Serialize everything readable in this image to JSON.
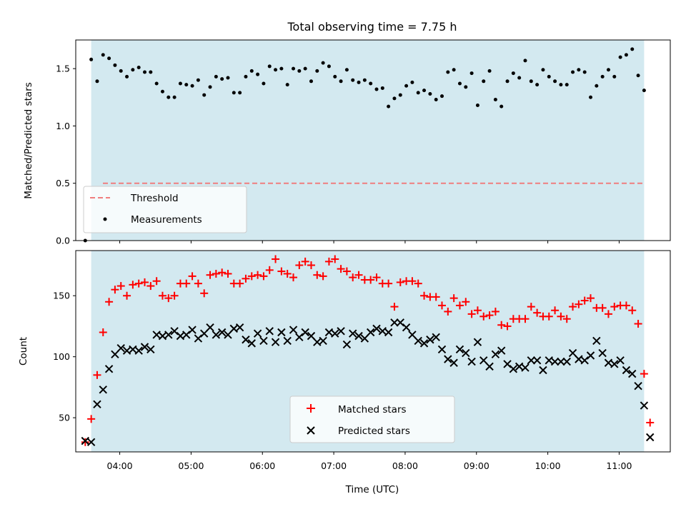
{
  "figure": {
    "title": "Total observing time = 7.75 h",
    "colors": {
      "shade": "#d3e9f0",
      "threshold": "#f07e7e",
      "measurement": "#000000",
      "matched": "#ff0000",
      "predicted": "#000000"
    }
  },
  "chart_data": [
    {
      "type": "scatter",
      "panel": "top",
      "ylabel": "Matched/Predicted stars",
      "xlabel": "",
      "xlim": [
        "03:23",
        "11:43"
      ],
      "ylim": [
        0,
        1.75
      ],
      "yticks": [
        "0.0",
        "0.5",
        "1.0",
        "1.5"
      ],
      "shaded_span": [
        "03:36",
        "11:21"
      ],
      "threshold": 0.5,
      "legend": {
        "placement": "lower-left",
        "entries": [
          "Threshold",
          "Measurements"
        ]
      },
      "series": [
        {
          "name": "Measurements",
          "x": [
            "03:31",
            "03:36",
            "03:41",
            "03:46",
            "03:51",
            "03:56",
            "04:01",
            "04:06",
            "04:11",
            "04:16",
            "04:21",
            "04:26",
            "04:31",
            "04:36",
            "04:41",
            "04:46",
            "04:51",
            "04:56",
            "05:01",
            "05:06",
            "05:11",
            "05:16",
            "05:21",
            "05:26",
            "05:31",
            "05:36",
            "05:41",
            "05:46",
            "05:51",
            "05:56",
            "06:01",
            "06:06",
            "06:11",
            "06:16",
            "06:21",
            "06:26",
            "06:31",
            "06:36",
            "06:41",
            "06:46",
            "06:51",
            "06:56",
            "07:01",
            "07:06",
            "07:11",
            "07:16",
            "07:21",
            "07:26",
            "07:31",
            "07:36",
            "07:41",
            "07:46",
            "07:51",
            "07:56",
            "08:01",
            "08:06",
            "08:11",
            "08:16",
            "08:21",
            "08:26",
            "08:31",
            "08:36",
            "08:41",
            "08:46",
            "08:51",
            "08:56",
            "09:01",
            "09:06",
            "09:11",
            "09:16",
            "09:21",
            "09:26",
            "09:31",
            "09:36",
            "09:41",
            "09:46",
            "09:51",
            "09:56",
            "10:01",
            "10:06",
            "10:11",
            "10:16",
            "10:21",
            "10:26",
            "10:31",
            "10:36",
            "10:41",
            "10:46",
            "10:51",
            "10:56",
            "11:01",
            "11:06",
            "11:11",
            "11:16",
            "11:21"
          ],
          "y": [
            0.0,
            1.58,
            1.39,
            1.62,
            1.59,
            1.53,
            1.48,
            1.43,
            1.49,
            1.51,
            1.47,
            1.47,
            1.37,
            1.3,
            1.25,
            1.25,
            1.37,
            1.36,
            1.35,
            1.4,
            1.27,
            1.34,
            1.43,
            1.41,
            1.42,
            1.29,
            1.29,
            1.43,
            1.48,
            1.45,
            1.37,
            1.52,
            1.49,
            1.5,
            1.36,
            1.5,
            1.48,
            1.5,
            1.39,
            1.48,
            1.55,
            1.52,
            1.43,
            1.39,
            1.49,
            1.4,
            1.38,
            1.4,
            1.37,
            1.32,
            1.33,
            1.17,
            1.24,
            1.27,
            1.35,
            1.38,
            1.29,
            1.31,
            1.28,
            1.23,
            1.26,
            1.47,
            1.49,
            1.37,
            1.34,
            1.46,
            1.18,
            1.39,
            1.48,
            1.23,
            1.17,
            1.39,
            1.46,
            1.42,
            1.57,
            1.39,
            1.36,
            1.49,
            1.43,
            1.39,
            1.36,
            1.36,
            1.47,
            1.49,
            1.47,
            1.25,
            1.35,
            1.43,
            1.49,
            1.43,
            1.6,
            1.62,
            1.67,
            1.44,
            1.31
          ]
        }
      ]
    },
    {
      "type": "scatter",
      "panel": "bottom",
      "ylabel": "Count",
      "xlabel": "Time (UTC)",
      "xlim": [
        "03:23",
        "11:43"
      ],
      "ylim": [
        22,
        187
      ],
      "yticks": [
        "50",
        "100",
        "150"
      ],
      "xticks": [
        "04:00",
        "05:00",
        "06:00",
        "07:00",
        "08:00",
        "09:00",
        "10:00",
        "11:00"
      ],
      "shaded_span": [
        "03:36",
        "11:21"
      ],
      "legend": {
        "placement": "lower-center",
        "entries": [
          "Matched stars",
          "Predicted stars"
        ]
      },
      "x": [
        "03:31",
        "03:36",
        "03:41",
        "03:46",
        "03:51",
        "03:56",
        "04:01",
        "04:06",
        "04:11",
        "04:16",
        "04:21",
        "04:26",
        "04:31",
        "04:36",
        "04:41",
        "04:46",
        "04:51",
        "04:56",
        "05:01",
        "05:06",
        "05:11",
        "05:16",
        "05:21",
        "05:26",
        "05:31",
        "05:36",
        "05:41",
        "05:46",
        "05:51",
        "05:56",
        "06:01",
        "06:06",
        "06:11",
        "06:16",
        "06:21",
        "06:26",
        "06:31",
        "06:36",
        "06:41",
        "06:46",
        "06:51",
        "06:56",
        "07:01",
        "07:06",
        "07:11",
        "07:16",
        "07:21",
        "07:26",
        "07:31",
        "07:36",
        "07:41",
        "07:46",
        "07:51",
        "07:56",
        "08:01",
        "08:06",
        "08:11",
        "08:16",
        "08:21",
        "08:26",
        "08:31",
        "08:36",
        "08:41",
        "08:46",
        "08:51",
        "08:56",
        "09:01",
        "09:06",
        "09:11",
        "09:16",
        "09:21",
        "09:26",
        "09:31",
        "09:36",
        "09:41",
        "09:46",
        "09:51",
        "09:56",
        "10:01",
        "10:06",
        "10:11",
        "10:16",
        "10:21",
        "10:26",
        "10:31",
        "10:36",
        "10:41",
        "10:46",
        "10:51",
        "10:56",
        "11:01",
        "11:06",
        "11:11",
        "11:16",
        "11:21",
        "11:26"
      ],
      "series": [
        {
          "name": "Matched stars",
          "values": [
            30,
            49,
            85,
            120,
            145,
            155,
            158,
            150,
            159,
            160,
            161,
            158,
            162,
            150,
            148,
            150,
            160,
            160,
            166,
            160,
            152,
            167,
            168,
            169,
            168,
            160,
            160,
            164,
            166,
            167,
            166,
            171,
            180,
            170,
            168,
            165,
            175,
            178,
            175,
            167,
            166,
            178,
            180,
            172,
            170,
            165,
            167,
            163,
            163,
            165,
            160,
            160,
            141,
            161,
            162,
            162,
            160,
            150,
            149,
            149,
            142,
            137,
            148,
            142,
            145,
            135,
            138,
            133,
            134,
            137,
            126,
            125,
            131,
            131,
            131,
            141,
            136,
            133,
            133,
            138,
            133,
            131,
            141,
            143,
            146,
            148,
            140,
            140,
            135,
            141,
            142,
            142,
            138,
            127,
            86,
            46
          ]
        },
        {
          "name": "Predicted stars",
          "values": [
            31,
            30,
            61,
            73,
            90,
            102,
            107,
            105,
            106,
            105,
            108,
            106,
            118,
            117,
            118,
            121,
            117,
            118,
            122,
            115,
            119,
            124,
            118,
            120,
            118,
            123,
            124,
            114,
            111,
            119,
            113,
            121,
            112,
            120,
            113,
            122,
            116,
            120,
            117,
            112,
            113,
            120,
            119,
            121,
            110,
            119,
            117,
            115,
            120,
            123,
            121,
            120,
            128,
            128,
            124,
            118,
            113,
            111,
            114,
            116,
            106,
            98,
            95,
            106,
            103,
            96,
            112,
            97,
            92,
            102,
            105,
            94,
            90,
            92,
            91,
            97,
            97,
            89,
            97,
            96,
            96,
            96,
            103,
            98,
            97,
            101,
            113,
            103,
            95,
            94,
            97,
            89,
            86,
            76,
            60,
            34
          ]
        }
      ]
    }
  ]
}
